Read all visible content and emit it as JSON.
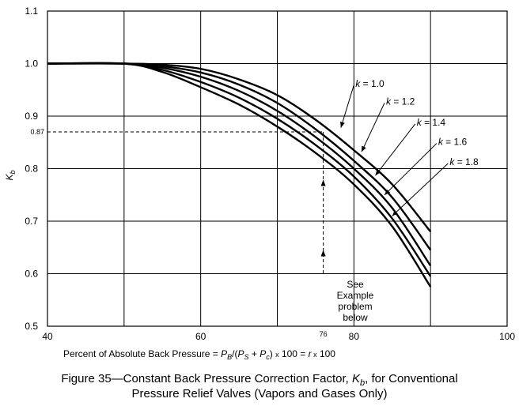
{
  "chart_data": {
    "type": "line",
    "title": "Figure 35—Constant Back Pressure Correction Factor, Kb, for Conventional Pressure Relief Valves (Vapors and Gases Only)",
    "xlabel": "Percent of Absolute Back Pressure = PB/(PS + Pc) x 100 = r x 100",
    "ylabel": "Kb",
    "xlim": [
      40,
      100
    ],
    "ylim": [
      0.5,
      1.1
    ],
    "x_ticks": [
      "40",
      "60",
      "80",
      "100"
    ],
    "y_ticks": [
      "0.5",
      "0.6",
      "0.7",
      "0.8",
      "0.9",
      "1.0",
      "1.1"
    ],
    "grid": true,
    "series": [
      {
        "name": "k = 1.0",
        "x": [
          40,
          50,
          55,
          60,
          65,
          70,
          75,
          80,
          85,
          90
        ],
        "y": [
          1.0,
          1.0,
          0.998,
          0.99,
          0.97,
          0.94,
          0.893,
          0.835,
          0.77,
          0.68
        ]
      },
      {
        "name": "k = 1.2",
        "x": [
          40,
          50,
          55,
          60,
          65,
          70,
          75,
          80,
          85,
          90
        ],
        "y": [
          1.0,
          1.0,
          0.995,
          0.983,
          0.96,
          0.925,
          0.875,
          0.815,
          0.745,
          0.645
        ]
      },
      {
        "name": "k = 1.4",
        "x": [
          40,
          50,
          55,
          60,
          65,
          70,
          75,
          80,
          85,
          90
        ],
        "y": [
          1.0,
          1.0,
          0.992,
          0.975,
          0.948,
          0.91,
          0.86,
          0.8,
          0.725,
          0.615
        ]
      },
      {
        "name": "k = 1.6",
        "x": [
          40,
          50,
          55,
          60,
          65,
          70,
          75,
          80,
          85,
          90
        ],
        "y": [
          1.0,
          1.0,
          0.988,
          0.965,
          0.935,
          0.895,
          0.845,
          0.785,
          0.705,
          0.595
        ]
      },
      {
        "name": "k = 1.8",
        "x": [
          40,
          50,
          55,
          60,
          65,
          70,
          75,
          80,
          85,
          90
        ],
        "y": [
          1.0,
          1.0,
          0.984,
          0.955,
          0.922,
          0.88,
          0.83,
          0.77,
          0.69,
          0.575
        ]
      }
    ],
    "example": {
      "x": 76,
      "y": 0.87,
      "x_marker_label": "76",
      "y_marker_label": "0.87",
      "note_lines": [
        "See",
        "Example",
        "problem",
        "below"
      ]
    }
  },
  "caption": {
    "line1": "Figure  35—Constant Back Pressure Correction Factor, Kb, for Conventional",
    "line2": "Pressure Relief Valves (Vapors and Gases Only)"
  }
}
